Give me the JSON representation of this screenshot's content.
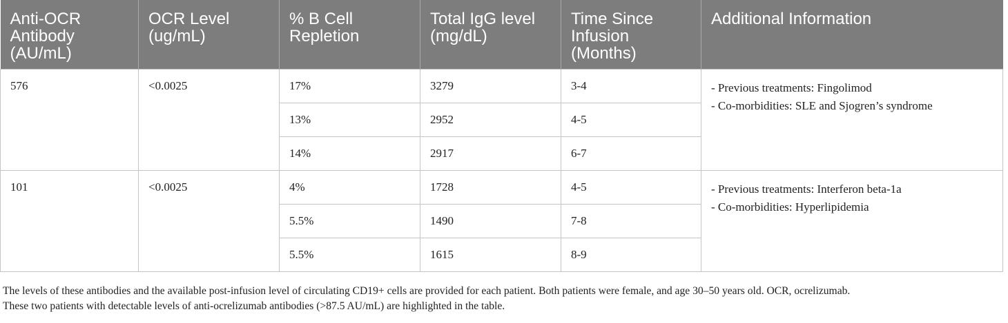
{
  "table": {
    "headers": [
      "Anti-OCR Antibody (AU/mL)",
      "OCR Level (ug/mL)",
      "% B Cell Repletion",
      "Total IgG level (mg/dL)",
      "Time Since Infusion (Months)",
      "Additional Information"
    ],
    "patients": [
      {
        "anti_ocr": "576",
        "ocr_level": "<0.0025",
        "rows": [
          {
            "b_cell": "17%",
            "igg": "3279",
            "time": "3-4"
          },
          {
            "b_cell": "13%",
            "igg": "2952",
            "time": "4-5"
          },
          {
            "b_cell": "14%",
            "igg": "2917",
            "time": "6-7"
          }
        ],
        "info": [
          "- Previous treatments: Fingolimod",
          "- Co-morbidities: SLE and Sjogren’s syndrome"
        ]
      },
      {
        "anti_ocr": "101",
        "ocr_level": "<0.0025",
        "rows": [
          {
            "b_cell": "4%",
            "igg": "1728",
            "time": "4-5"
          },
          {
            "b_cell": "5.5%",
            "igg": "1490",
            "time": "7-8"
          },
          {
            "b_cell": "5.5%",
            "igg": "1615",
            "time": "8-9"
          }
        ],
        "info": [
          "- Previous treatments: Interferon beta-1a",
          "- Co-morbidities: Hyperlipidemia"
        ]
      }
    ]
  },
  "caption": {
    "line1": "The levels of these antibodies and the available post-infusion level of circulating CD19+ cells are provided for each patient. Both patients were female, and age 30–50 years old. OCR, ocrelizumab.",
    "line2": "These two patients with detectable levels of anti-ocrelizumab antibodies (>87.5 AU/mL) are highlighted in the table."
  }
}
